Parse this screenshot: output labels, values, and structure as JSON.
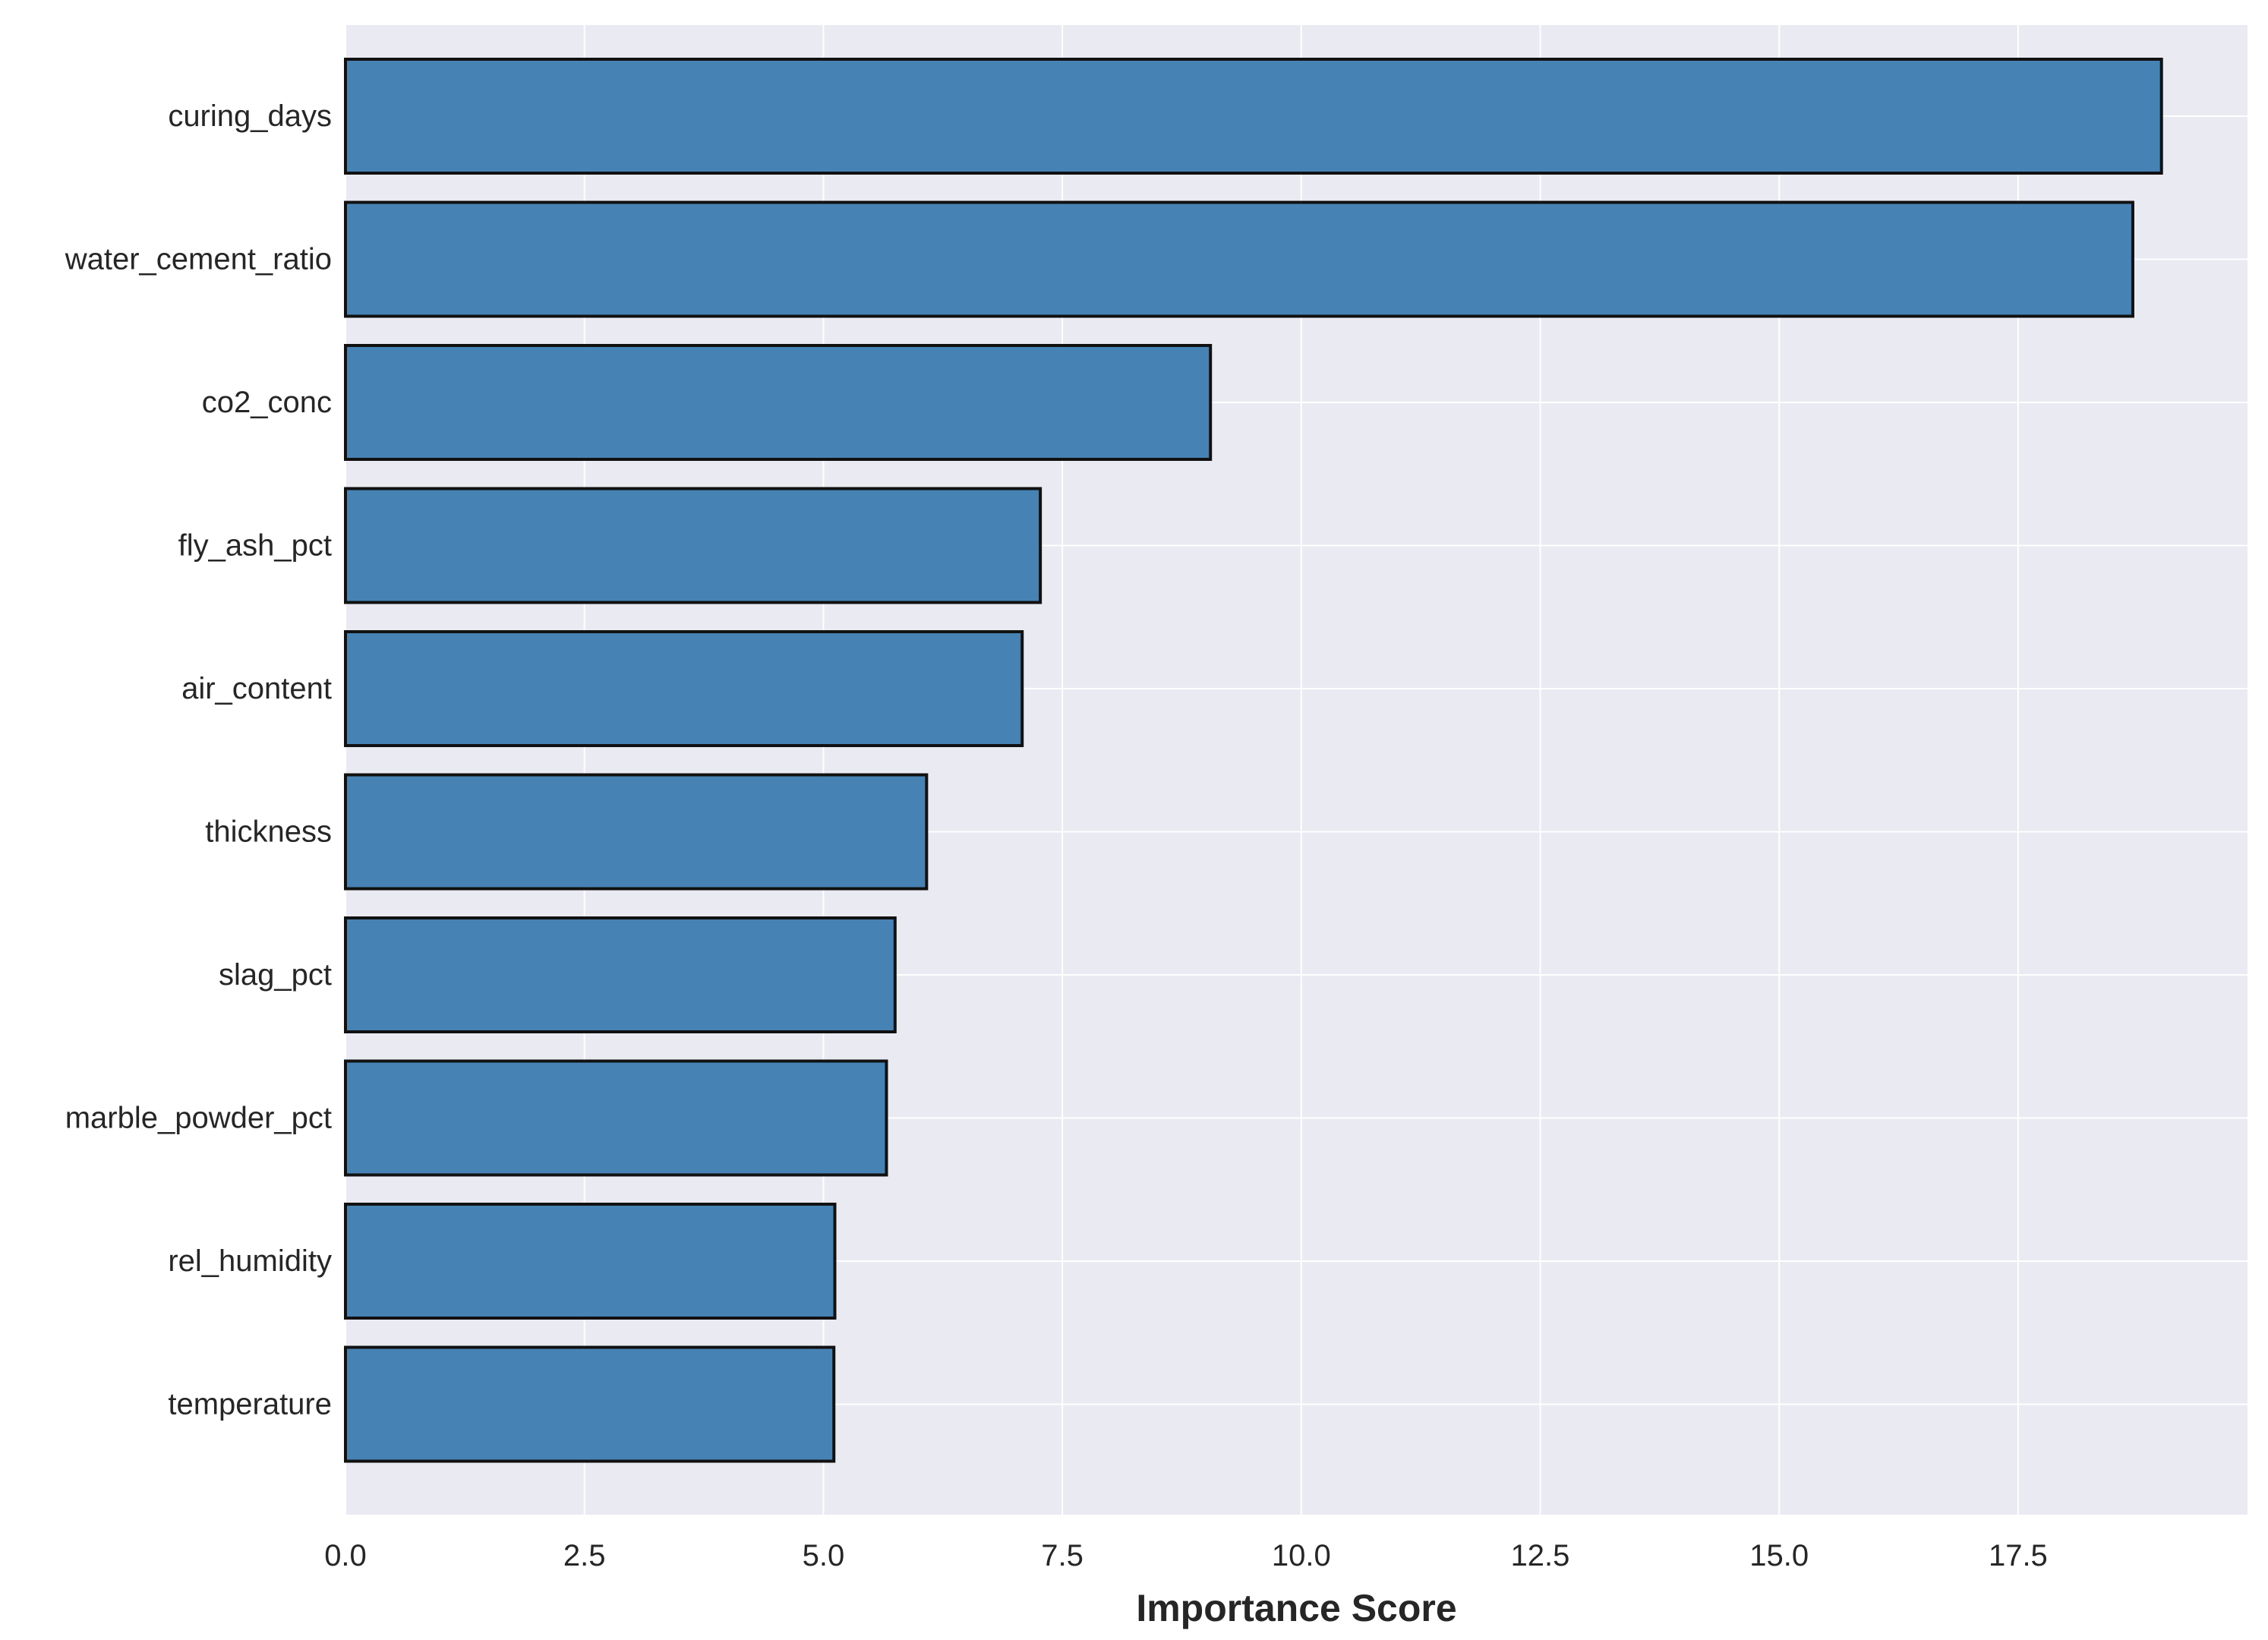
{
  "colors": {
    "plot_background": "#eaeaf2",
    "grid": "#ffffff",
    "bar_fill": "#4682b4",
    "bar_edge": "#111111",
    "text": "#262626"
  },
  "chart_data": {
    "type": "bar",
    "orientation": "horizontal",
    "categories": [
      "curing_days",
      "water_cement_ratio",
      "co2_conc",
      "fly_ash_pct",
      "air_content",
      "thickness",
      "slag_pct",
      "marble_powder_pct",
      "rel_humidity",
      "temperature"
    ],
    "values": [
      19.0,
      18.7,
      9.05,
      7.27,
      7.08,
      6.08,
      5.75,
      5.66,
      5.12,
      5.11
    ],
    "title": "",
    "xlabel": "Importance Score",
    "ylabel": "",
    "xlim": [
      0.0,
      19.9
    ],
    "xticks": [
      "0.0",
      "2.5",
      "5.0",
      "7.5",
      "10.0",
      "12.5",
      "15.0",
      "17.5"
    ],
    "grid": true
  }
}
